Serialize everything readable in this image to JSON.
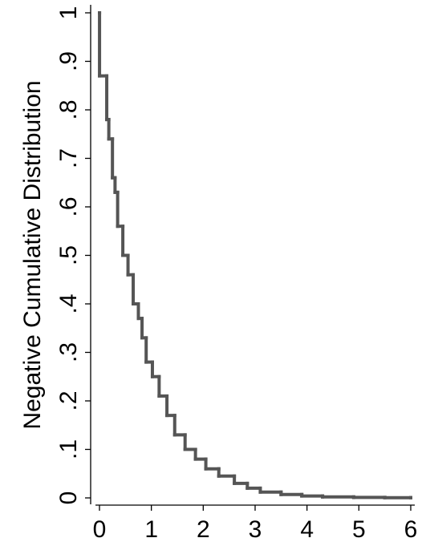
{
  "chart_data": {
    "type": "line",
    "step": true,
    "ylabel": "Negative Cumulative Distribution",
    "x": [
      0,
      0.001,
      0.14,
      0.18,
      0.25,
      0.3,
      0.35,
      0.45,
      0.55,
      0.65,
      0.75,
      0.82,
      0.9,
      1.02,
      1.15,
      1.3,
      1.45,
      1.65,
      1.85,
      2.05,
      2.3,
      2.6,
      2.85,
      3.1,
      3.5,
      3.9,
      4.3,
      4.9,
      5.5,
      6
    ],
    "values": [
      1,
      0.87,
      0.78,
      0.74,
      0.66,
      0.63,
      0.56,
      0.5,
      0.46,
      0.4,
      0.37,
      0.33,
      0.28,
      0.25,
      0.21,
      0.17,
      0.13,
      0.1,
      0.08,
      0.06,
      0.045,
      0.03,
      0.02,
      0.012,
      0.007,
      0.004,
      0.002,
      0.001,
      0.0005,
      0.0005
    ],
    "color": "#555555",
    "xlim": [
      0,
      6
    ],
    "xticks": [
      0,
      1,
      2,
      3,
      4,
      5,
      6
    ],
    "ylim": [
      0,
      1
    ],
    "yticks": [
      0,
      {
        "value": 0.1,
        "label": ".1"
      },
      {
        "value": 0.2,
        "label": ".2"
      },
      {
        "value": 0.3,
        "label": ".3"
      },
      {
        "value": 0.4,
        "label": ".4"
      },
      {
        "value": 0.5,
        "label": ".5"
      },
      {
        "value": 0.6,
        "label": ".6"
      },
      {
        "value": 0.7,
        "label": ".7"
      },
      {
        "value": 0.8,
        "label": ".8"
      },
      {
        "value": 0.9,
        "label": ".9"
      },
      1
    ],
    "grid": false
  }
}
